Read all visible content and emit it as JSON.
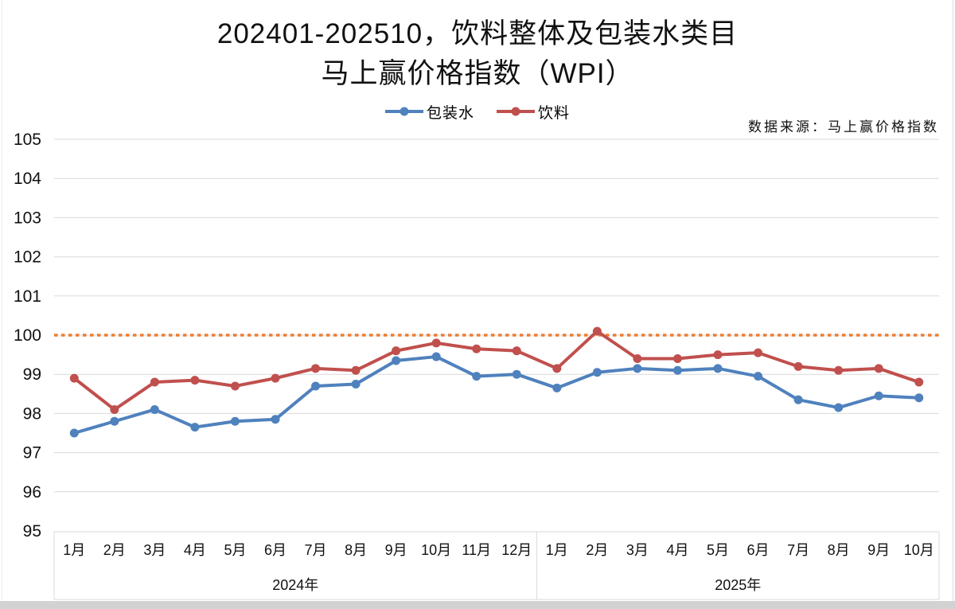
{
  "header": {
    "title_line1": "202401-202510，饮料整体及包装水类目",
    "title_line2": "马上赢价格指数（WPI）",
    "source_note": "数据来源：马上赢价格指数"
  },
  "legend": [
    {
      "label": "包装水",
      "slug": "packaged-water",
      "color": "#4F81BD"
    },
    {
      "label": "饮料",
      "slug": "beverage",
      "color": "#C0504D"
    }
  ],
  "chart_data": {
    "type": "line",
    "title": "202401-202510，饮料整体及包装水类目 马上赢价格指数（WPI）",
    "xlabel": "",
    "ylabel": "",
    "ylim": [
      95,
      105
    ],
    "y_ticks": [
      95,
      96,
      97,
      98,
      99,
      100,
      101,
      102,
      103,
      104,
      105
    ],
    "grid": true,
    "grid_color": "#d9d9d9",
    "legend_position": "top-center",
    "month_labels": [
      "1月",
      "2月",
      "3月",
      "4月",
      "5月",
      "6月",
      "7月",
      "8月",
      "9月",
      "10月",
      "11月",
      "12月",
      "1月",
      "2月",
      "3月",
      "4月",
      "5月",
      "6月",
      "7月",
      "8月",
      "9月",
      "10月"
    ],
    "year_groups": [
      {
        "label": "2024年",
        "span": 12
      },
      {
        "label": "2025年",
        "span": 10
      }
    ],
    "reference_line": {
      "value": 100,
      "color": "#ED7D31",
      "style": "dotted"
    },
    "series": [
      {
        "name": "包装水",
        "slug": "packaged-water",
        "color": "#4F81BD",
        "values": [
          97.5,
          97.8,
          98.1,
          97.65,
          97.8,
          97.85,
          98.7,
          98.75,
          99.35,
          99.45,
          98.95,
          99.0,
          98.65,
          99.05,
          99.15,
          99.1,
          99.15,
          98.95,
          98.35,
          98.15,
          98.45,
          98.4
        ]
      },
      {
        "name": "饮料",
        "slug": "beverage",
        "color": "#C0504D",
        "values": [
          98.9,
          98.1,
          98.8,
          98.85,
          98.7,
          98.9,
          99.15,
          99.1,
          99.6,
          99.8,
          99.65,
          99.6,
          99.15,
          100.1,
          99.4,
          99.4,
          99.5,
          99.55,
          99.2,
          99.1,
          99.15,
          98.8
        ]
      }
    ]
  }
}
